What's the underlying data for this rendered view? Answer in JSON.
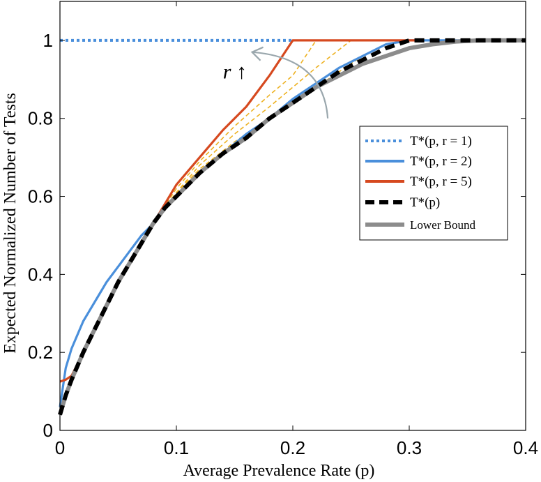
{
  "chart_data": {
    "type": "line",
    "title": "",
    "xlabel": "Average Prevalence Rate (p)",
    "ylabel": "Expected Normalized Number of Tests",
    "xlim": [
      0,
      0.4
    ],
    "ylim": [
      0,
      1.1
    ],
    "xticks": [
      0,
      0.1,
      0.2,
      0.3,
      0.4
    ],
    "xtick_labels": [
      "0",
      "0.1",
      "0.2",
      "0.3",
      "0.4"
    ],
    "yticks": [
      0,
      0.2,
      0.4,
      0.6,
      0.8,
      1
    ],
    "ytick_labels": [
      "0",
      "0.2",
      "0.4",
      "0.6",
      "0.8",
      "1"
    ],
    "legend_position": "right",
    "annotation": {
      "text": "r ↑",
      "x": 0.14,
      "y": 0.92,
      "arrow_from": [
        0.23,
        0.8
      ],
      "arrow_to": [
        0.165,
        0.97
      ]
    },
    "series": [
      {
        "name": "T*(p, r = 1)",
        "label": "T*(p, r = 1)",
        "color": "#4a8fdb",
        "style": "dotted",
        "points": [
          [
            0,
            1
          ],
          [
            0.2,
            1
          ]
        ]
      },
      {
        "name": "T*(p, r = 2)",
        "label": "T*(p, r = 2)",
        "color": "#4a8fdb",
        "style": "solid",
        "points": [
          [
            0.0,
            0.06
          ],
          [
            0.005,
            0.16
          ],
          [
            0.01,
            0.21
          ],
          [
            0.02,
            0.28
          ],
          [
            0.03,
            0.33
          ],
          [
            0.04,
            0.38
          ],
          [
            0.05,
            0.42
          ],
          [
            0.06,
            0.46
          ],
          [
            0.07,
            0.5
          ],
          [
            0.08,
            0.53
          ],
          [
            0.09,
            0.57
          ],
          [
            0.1,
            0.6
          ],
          [
            0.12,
            0.66
          ],
          [
            0.14,
            0.71
          ],
          [
            0.16,
            0.76
          ],
          [
            0.18,
            0.8
          ],
          [
            0.2,
            0.85
          ],
          [
            0.22,
            0.89
          ],
          [
            0.24,
            0.93
          ],
          [
            0.26,
            0.96
          ],
          [
            0.28,
            0.99
          ],
          [
            0.3,
            1.0
          ],
          [
            0.4,
            1.0
          ]
        ]
      },
      {
        "name": "T*(p, r = 5)",
        "label": "T*(p, r = 5)",
        "color": "#d6491f",
        "style": "solid",
        "points": [
          [
            0.0,
            0.125
          ],
          [
            0.005,
            0.13
          ],
          [
            0.01,
            0.14
          ],
          [
            0.02,
            0.2
          ],
          [
            0.03,
            0.26
          ],
          [
            0.04,
            0.32
          ],
          [
            0.05,
            0.38
          ],
          [
            0.06,
            0.43
          ],
          [
            0.07,
            0.48
          ],
          [
            0.08,
            0.53
          ],
          [
            0.09,
            0.58
          ],
          [
            0.1,
            0.63
          ],
          [
            0.12,
            0.7
          ],
          [
            0.14,
            0.77
          ],
          [
            0.16,
            0.83
          ],
          [
            0.18,
            0.91
          ],
          [
            0.2,
            1.0
          ],
          [
            0.31,
            1.0
          ]
        ]
      },
      {
        "name": "T*(p)",
        "label": "T*(p)",
        "color": "#000000",
        "style": "dashed",
        "points": [
          [
            0.0,
            0.04
          ],
          [
            0.005,
            0.09
          ],
          [
            0.01,
            0.13
          ],
          [
            0.02,
            0.2
          ],
          [
            0.03,
            0.26
          ],
          [
            0.04,
            0.32
          ],
          [
            0.05,
            0.38
          ],
          [
            0.06,
            0.43
          ],
          [
            0.07,
            0.48
          ],
          [
            0.08,
            0.53
          ],
          [
            0.09,
            0.57
          ],
          [
            0.1,
            0.6
          ],
          [
            0.12,
            0.66
          ],
          [
            0.14,
            0.71
          ],
          [
            0.16,
            0.75
          ],
          [
            0.18,
            0.8
          ],
          [
            0.2,
            0.84
          ],
          [
            0.22,
            0.88
          ],
          [
            0.24,
            0.92
          ],
          [
            0.26,
            0.95
          ],
          [
            0.28,
            0.98
          ],
          [
            0.3,
            1.0
          ],
          [
            0.4,
            1.0
          ]
        ]
      },
      {
        "name": "Lower Bound",
        "label": "Lower Bound",
        "color": "#8c8c8c",
        "style": "solid",
        "points": [
          [
            0.0,
            0.04
          ],
          [
            0.005,
            0.09
          ],
          [
            0.01,
            0.13
          ],
          [
            0.02,
            0.2
          ],
          [
            0.03,
            0.26
          ],
          [
            0.04,
            0.32
          ],
          [
            0.05,
            0.38
          ],
          [
            0.06,
            0.43
          ],
          [
            0.07,
            0.48
          ],
          [
            0.08,
            0.53
          ],
          [
            0.09,
            0.57
          ],
          [
            0.1,
            0.6
          ],
          [
            0.12,
            0.66
          ],
          [
            0.14,
            0.71
          ],
          [
            0.16,
            0.75
          ],
          [
            0.18,
            0.8
          ],
          [
            0.2,
            0.84
          ],
          [
            0.22,
            0.88
          ],
          [
            0.24,
            0.91
          ],
          [
            0.26,
            0.94
          ],
          [
            0.28,
            0.96
          ],
          [
            0.3,
            0.98
          ],
          [
            0.32,
            0.99
          ],
          [
            0.34,
            0.997
          ],
          [
            0.36,
            1.0
          ],
          [
            0.4,
            1.0
          ]
        ]
      }
    ],
    "intermediate_series": [
      {
        "name": "T*(p, r = 3)",
        "color": "#edb120",
        "style": "dashed",
        "points": [
          [
            0.0,
            0.06
          ],
          [
            0.02,
            0.2
          ],
          [
            0.05,
            0.38
          ],
          [
            0.08,
            0.53
          ],
          [
            0.1,
            0.62
          ],
          [
            0.12,
            0.69
          ],
          [
            0.15,
            0.78
          ],
          [
            0.18,
            0.86
          ],
          [
            0.2,
            0.91
          ],
          [
            0.22,
            1.0
          ]
        ]
      },
      {
        "name": "T*(p, r = 4)",
        "color": "#edb120",
        "style": "dashed",
        "points": [
          [
            0.0,
            0.06
          ],
          [
            0.02,
            0.2
          ],
          [
            0.05,
            0.38
          ],
          [
            0.08,
            0.53
          ],
          [
            0.1,
            0.61
          ],
          [
            0.12,
            0.68
          ],
          [
            0.15,
            0.76
          ],
          [
            0.18,
            0.83
          ],
          [
            0.2,
            0.88
          ],
          [
            0.22,
            0.93
          ],
          [
            0.25,
            1.0
          ]
        ]
      },
      {
        "name": "T*(p, r = 6)",
        "color": "#edb120",
        "style": "dashed",
        "points": [
          [
            0.0,
            0.06
          ],
          [
            0.02,
            0.2
          ],
          [
            0.05,
            0.38
          ],
          [
            0.08,
            0.53
          ],
          [
            0.1,
            0.61
          ],
          [
            0.12,
            0.67
          ],
          [
            0.15,
            0.74
          ],
          [
            0.18,
            0.8
          ],
          [
            0.2,
            0.84
          ],
          [
            0.22,
            0.88
          ],
          [
            0.24,
            0.92
          ],
          [
            0.26,
            0.96
          ]
        ]
      }
    ]
  }
}
